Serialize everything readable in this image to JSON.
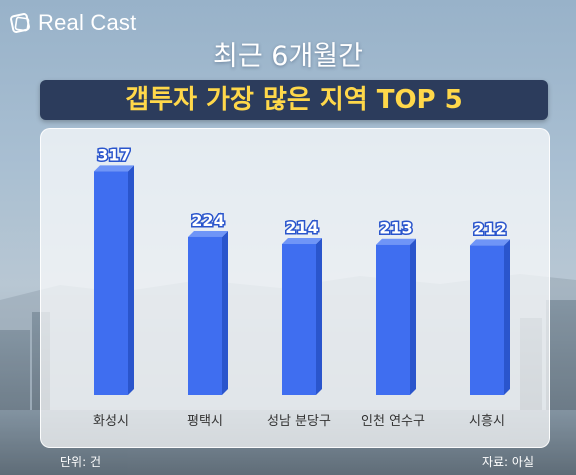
{
  "brand": {
    "name": "Real Cast"
  },
  "title": {
    "line1": "최근 6개월간",
    "line2": "갭투자 가장 많은 지역 TOP 5"
  },
  "footer": {
    "unit": "단위: 건",
    "source": "자료: 아실"
  },
  "colors": {
    "bar_front": "#3f6ef0",
    "bar_side": "#2a55cc",
    "bar_top": "#6f95f7",
    "banner": "#2c3c5c",
    "banner_text": "#ffd84a"
  },
  "chart_data": {
    "type": "bar",
    "title": "최근 6개월간 갭투자 가장 많은 지역 TOP 5",
    "categories": [
      "화성시",
      "평택시",
      "성남 분당구",
      "인천 연수구",
      "시흥시"
    ],
    "values": [
      317,
      224,
      214,
      213,
      212
    ],
    "ylabel": "",
    "xlabel": "",
    "unit": "건",
    "ylim": [
      0,
      360
    ],
    "grid": false,
    "legend": "none"
  }
}
